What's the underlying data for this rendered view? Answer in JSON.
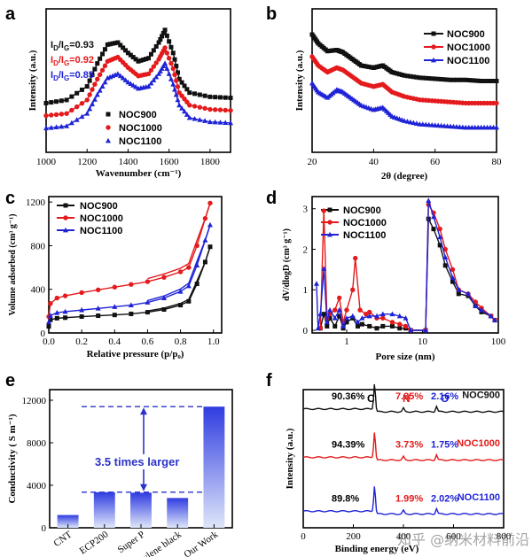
{
  "colors": {
    "noc900": "#111111",
    "noc1000": "#e41a1c",
    "noc1100": "#1f23d6",
    "bar_top": "#2f3ce0",
    "bar_bottom": "#dfe6fa"
  },
  "watermark": "知乎 @纳米材料前沿",
  "chart_data": [
    {
      "panel": "a",
      "type": "line",
      "xlabel": "Wavenumber (cm⁻¹)",
      "ylabel": "Intensity (a.u.)",
      "xlim": [
        1000,
        1900
      ],
      "xticks": [
        "1000",
        "1200",
        "1400",
        "1600",
        "1800"
      ],
      "series": [
        {
          "name": "NOC900",
          "marker": "square",
          "x": [
            1000,
            1100,
            1200,
            1250,
            1300,
            1350,
            1400,
            1450,
            1500,
            1550,
            1580,
            1620,
            1650,
            1700,
            1800,
            1900
          ],
          "y": [
            0.42,
            0.45,
            0.58,
            0.8,
            0.98,
            1.0,
            0.9,
            0.82,
            0.85,
            1.0,
            1.12,
            0.9,
            0.65,
            0.52,
            0.48,
            0.47
          ]
        },
        {
          "name": "NOC1000",
          "marker": "circle",
          "x": [
            1000,
            1100,
            1200,
            1250,
            1300,
            1350,
            1400,
            1450,
            1500,
            1550,
            1580,
            1620,
            1650,
            1700,
            1800,
            1900
          ],
          "y": [
            0.3,
            0.32,
            0.45,
            0.65,
            0.82,
            0.86,
            0.76,
            0.68,
            0.7,
            0.84,
            0.95,
            0.75,
            0.52,
            0.4,
            0.36,
            0.35
          ]
        },
        {
          "name": "NOC1100",
          "marker": "triangle",
          "x": [
            1000,
            1100,
            1200,
            1250,
            1300,
            1350,
            1400,
            1450,
            1500,
            1550,
            1580,
            1620,
            1650,
            1700,
            1800,
            1900
          ],
          "y": [
            0.18,
            0.2,
            0.32,
            0.5,
            0.66,
            0.7,
            0.62,
            0.56,
            0.58,
            0.7,
            0.8,
            0.6,
            0.4,
            0.28,
            0.24,
            0.23
          ]
        }
      ],
      "ratios": [
        {
          "label": "ID/IG=0.93",
          "prefix": "I",
          "sub1": "D",
          "mid": "/I",
          "sub2": "G",
          "value": "=0.93"
        },
        {
          "label": "ID/IG=0.92",
          "prefix": "I",
          "sub1": "D",
          "mid": "/I",
          "sub2": "G",
          "value": "=0.92"
        },
        {
          "label": "ID/IG=0.85",
          "prefix": "I",
          "sub1": "D",
          "mid": "/I",
          "sub2": "G",
          "value": "=0.85"
        }
      ]
    },
    {
      "panel": "b",
      "type": "line",
      "xlabel": "2θ (degree)",
      "ylabel": "Intensity (a.u.)",
      "xlim": [
        20,
        80
      ],
      "xticks": [
        "20",
        "40",
        "60",
        "80"
      ],
      "series": [
        {
          "name": "NOC900",
          "marker": "square",
          "x": [
            20,
            22,
            25,
            28,
            30,
            33,
            36,
            40,
            43,
            46,
            50,
            55,
            60,
            65,
            70,
            75,
            80
          ],
          "y": [
            1.0,
            0.92,
            0.85,
            0.86,
            0.84,
            0.78,
            0.72,
            0.7,
            0.72,
            0.66,
            0.63,
            0.61,
            0.6,
            0.59,
            0.59,
            0.58,
            0.58
          ]
        },
        {
          "name": "NOC1000",
          "marker": "circle",
          "x": [
            20,
            22,
            25,
            28,
            30,
            33,
            36,
            40,
            43,
            46,
            50,
            55,
            60,
            65,
            70,
            75,
            80
          ],
          "y": [
            0.8,
            0.72,
            0.66,
            0.7,
            0.68,
            0.62,
            0.56,
            0.53,
            0.55,
            0.48,
            0.44,
            0.41,
            0.4,
            0.39,
            0.38,
            0.38,
            0.38
          ]
        },
        {
          "name": "NOC1100",
          "marker": "triangle",
          "x": [
            20,
            22,
            25,
            28,
            30,
            33,
            36,
            40,
            43,
            46,
            50,
            55,
            60,
            65,
            70,
            75,
            80
          ],
          "y": [
            0.56,
            0.48,
            0.43,
            0.5,
            0.48,
            0.42,
            0.36,
            0.32,
            0.34,
            0.26,
            0.22,
            0.19,
            0.18,
            0.17,
            0.16,
            0.16,
            0.16
          ]
        }
      ]
    },
    {
      "panel": "c",
      "type": "line",
      "xlabel": "Relative pressure (p/p₀)",
      "ylabel": "Volume adsorbed (cm³ g⁻¹)",
      "xlim": [
        0,
        1.05
      ],
      "ylim": [
        0,
        1250
      ],
      "xticks": [
        "0.0",
        "0.2",
        "0.4",
        "0.6",
        "0.8",
        "1.0"
      ],
      "yticks": [
        "0",
        "400",
        "800",
        "1200"
      ],
      "series": [
        {
          "name": "NOC900",
          "marker": "square",
          "x": [
            0.0,
            0.01,
            0.05,
            0.1,
            0.2,
            0.3,
            0.4,
            0.5,
            0.6,
            0.7,
            0.8,
            0.85,
            0.9,
            0.95,
            0.98
          ],
          "y": [
            60,
            120,
            135,
            140,
            150,
            158,
            165,
            175,
            190,
            215,
            255,
            290,
            450,
            650,
            790
          ]
        },
        {
          "name": "NOC1000",
          "marker": "circle",
          "x": [
            0.0,
            0.01,
            0.05,
            0.1,
            0.2,
            0.3,
            0.4,
            0.5,
            0.6,
            0.7,
            0.8,
            0.85,
            0.9,
            0.95,
            0.98
          ],
          "y": [
            150,
            270,
            320,
            340,
            370,
            395,
            420,
            445,
            470,
            510,
            560,
            600,
            800,
            1050,
            1190
          ]
        },
        {
          "name": "NOC1100",
          "marker": "triangle",
          "x": [
            0.0,
            0.01,
            0.05,
            0.1,
            0.2,
            0.3,
            0.4,
            0.5,
            0.6,
            0.7,
            0.8,
            0.85,
            0.9,
            0.95,
            0.98
          ],
          "y": [
            100,
            160,
            185,
            195,
            210,
            225,
            240,
            255,
            280,
            320,
            380,
            430,
            620,
            850,
            990
          ]
        }
      ]
    },
    {
      "panel": "d",
      "type": "line",
      "xlabel": "Pore size (nm)",
      "ylabel": "dV/dlogD (cm³ g⁻¹)",
      "xscale": "log",
      "xlim": [
        0.35,
        100
      ],
      "ylim": [
        0,
        3.3
      ],
      "xticks": [
        "1",
        "10",
        "100"
      ],
      "yticks": [
        "0",
        "1",
        "2",
        "3"
      ],
      "series": [
        {
          "name": "NOC900",
          "marker": "square",
          "x": [
            0.45,
            0.5,
            0.55,
            0.6,
            0.7,
            0.8,
            0.9,
            1.0,
            1.2,
            1.4,
            1.6,
            2.0,
            2.5,
            3,
            4,
            5,
            6,
            7,
            11,
            12,
            14,
            17,
            20,
            25,
            30,
            40,
            50,
            60,
            80,
            90
          ],
          "y": [
            0.05,
            0.4,
            0.1,
            0.3,
            0.1,
            0.35,
            0.05,
            0.2,
            0.3,
            0.1,
            0.15,
            0.1,
            0.05,
            0.1,
            0.1,
            0.05,
            0.05,
            0.0,
            0.0,
            2.75,
            2.5,
            2.1,
            1.6,
            1.2,
            0.9,
            0.85,
            0.6,
            0.45,
            0.35,
            0.25
          ]
        },
        {
          "name": "NOC1000",
          "marker": "circle",
          "x": [
            0.45,
            0.5,
            0.55,
            0.6,
            0.7,
            0.8,
            0.9,
            1.0,
            1.2,
            1.3,
            1.5,
            1.8,
            2.0,
            2.5,
            3,
            4,
            5,
            6,
            7,
            11,
            12,
            14,
            17,
            20,
            25,
            30,
            40,
            50,
            60,
            80,
            90
          ],
          "y": [
            0.05,
            2.95,
            0.3,
            0.4,
            0.5,
            0.8,
            0.2,
            0.5,
            1.0,
            1.78,
            0.5,
            0.4,
            0.45,
            0.3,
            0.3,
            0.2,
            0.15,
            0.1,
            0.0,
            0.0,
            3.1,
            2.9,
            2.5,
            2.0,
            1.5,
            1.0,
            0.9,
            0.7,
            0.55,
            0.35,
            0.25
          ]
        },
        {
          "name": "NOC1100",
          "marker": "triangle",
          "x": [
            0.4,
            0.42,
            0.45,
            0.5,
            0.55,
            0.6,
            0.7,
            0.8,
            0.9,
            1.0,
            1.2,
            1.4,
            1.6,
            2.0,
            2.5,
            3,
            4,
            5,
            6,
            7,
            11,
            12,
            14,
            17,
            20,
            25,
            30,
            40,
            50,
            60,
            80,
            90
          ],
          "y": [
            1.15,
            0.05,
            0.4,
            1.52,
            0.2,
            0.5,
            0.3,
            0.5,
            0.1,
            0.3,
            0.35,
            0.2,
            0.3,
            0.35,
            0.35,
            0.4,
            0.4,
            0.35,
            0.3,
            0.0,
            0.0,
            3.2,
            2.8,
            2.3,
            1.8,
            1.3,
            1.0,
            0.9,
            0.6,
            0.5,
            0.35,
            0.25
          ]
        }
      ]
    },
    {
      "panel": "e",
      "type": "bar",
      "ylabel": "Conductivity ( S m⁻¹)",
      "ylim": [
        0,
        13000
      ],
      "yticks": [
        "0",
        "4000",
        "8000",
        "12000"
      ],
      "categories": [
        "CNT",
        "ECP200",
        "Super P",
        "Acetylene black",
        "Our Work"
      ],
      "values": [
        1200,
        3350,
        3300,
        2800,
        11400
      ],
      "annotation": "3.5 times larger"
    },
    {
      "panel": "f",
      "type": "line",
      "xlabel": "Binding energy (eV)",
      "ylabel": "Intensity (a.u.)",
      "xlim": [
        0,
        800
      ],
      "xticks": [
        "0",
        "200",
        "400",
        "600",
        "800"
      ],
      "element_labels": [
        "C",
        "N",
        "O"
      ],
      "series": [
        {
          "name": "NOC900",
          "base": 0.86,
          "c": "90.36%",
          "n": "7.35%",
          "o": "2.16%"
        },
        {
          "name": "NOC1000",
          "base": 0.51,
          "c": "94.39%",
          "n": "3.73%",
          "o": "1.75%"
        },
        {
          "name": "NOC1100",
          "base": 0.12,
          "c": "89.8%",
          "n": "1.99%",
          "o": "2.02%"
        }
      ]
    }
  ]
}
